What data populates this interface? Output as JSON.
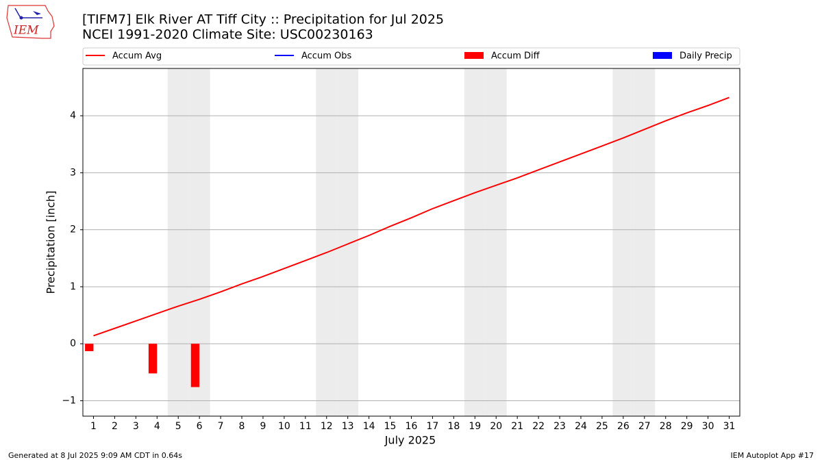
{
  "chart_data": {
    "type": "bar-line",
    "title": "[TIFM7] Elk River  AT Tiff City :: Precipitation for Jul 2025",
    "subtitle": "NCEI 1991-2020 Climate Site: USC00230163",
    "logo_text": "IEM",
    "x_label": "July 2025",
    "y_label": "Precipitation [inch]",
    "footer_left": "Generated at 8 Jul 2025 9:09 AM CDT in 0.64s",
    "footer_right": "IEM Autoplot App #17",
    "x": [
      1,
      2,
      3,
      4,
      5,
      6,
      7,
      8,
      9,
      10,
      11,
      12,
      13,
      14,
      15,
      16,
      17,
      18,
      19,
      20,
      21,
      22,
      23,
      24,
      25,
      26,
      27,
      28,
      29,
      30,
      31
    ],
    "xlim": [
      0.5,
      31.5
    ],
    "ylim": [
      -1.27,
      4.83
    ],
    "yticks": [
      {
        "value": -1,
        "label": "−1"
      },
      0,
      1,
      2,
      3,
      4
    ],
    "grid": true,
    "shaded_days": [
      5,
      6,
      12,
      13,
      19,
      20,
      26,
      27
    ],
    "series": [
      {
        "name": "Accum Avg",
        "color": "#ff0000",
        "mark": "line",
        "values": [
          0.14,
          0.27,
          0.4,
          0.53,
          0.66,
          0.78,
          0.91,
          1.05,
          1.18,
          1.32,
          1.46,
          1.6,
          1.75,
          1.9,
          2.06,
          2.21,
          2.37,
          2.51,
          2.65,
          2.78,
          2.91,
          3.05,
          3.19,
          3.33,
          3.47,
          3.61,
          3.76,
          3.91,
          4.05,
          4.18,
          4.32
        ]
      },
      {
        "name": "Accum Obs",
        "color": "#0000ff",
        "mark": "line",
        "values": [
          null,
          null,
          null,
          null,
          null,
          null,
          null,
          null,
          null,
          null,
          null,
          null,
          null,
          null,
          null,
          null,
          null,
          null,
          null,
          null,
          null,
          null,
          null,
          null,
          null,
          null,
          null,
          null,
          null,
          null,
          null
        ]
      },
      {
        "name": "Accum Diff",
        "color": "#ff0000",
        "mark": "bar",
        "values": [
          -0.13,
          null,
          null,
          -0.52,
          null,
          -0.76,
          null,
          null,
          null,
          null,
          null,
          null,
          null,
          null,
          null,
          null,
          null,
          null,
          null,
          null,
          null,
          null,
          null,
          null,
          null,
          null,
          null,
          null,
          null,
          null,
          null
        ]
      },
      {
        "name": "Daily Precip",
        "color": "#0000ff",
        "mark": "bar",
        "values": [
          null,
          null,
          null,
          null,
          null,
          null,
          null,
          null,
          null,
          null,
          null,
          null,
          null,
          null,
          null,
          null,
          null,
          null,
          null,
          null,
          null,
          null,
          null,
          null,
          null,
          null,
          null,
          null,
          null,
          null,
          null
        ]
      }
    ]
  }
}
